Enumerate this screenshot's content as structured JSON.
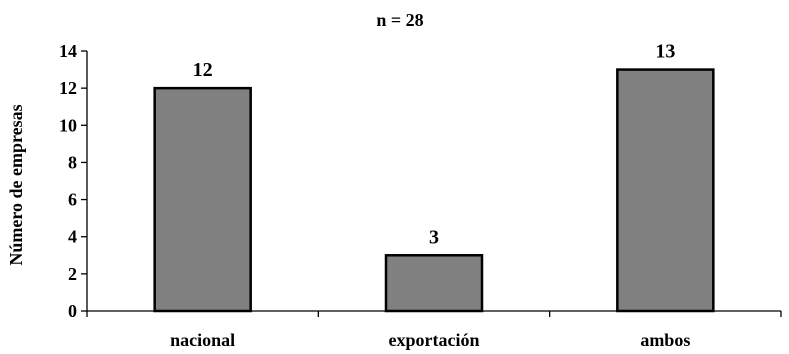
{
  "chart_data": {
    "type": "bar",
    "title": "n = 28",
    "xlabel": "",
    "ylabel": "Número de empresas",
    "categories": [
      "nacional",
      "exportación",
      "ambos"
    ],
    "values": [
      12,
      3,
      13
    ],
    "value_labels": [
      "12",
      "3",
      "13"
    ],
    "ylim": [
      0,
      14
    ],
    "yticks": [
      0,
      2,
      4,
      6,
      8,
      10,
      12,
      14
    ],
    "ytick_labels": [
      "0",
      "2",
      "4",
      "6",
      "8",
      "10",
      "12",
      "14"
    ],
    "grid": false,
    "legend": "none",
    "bar_color": "#808080",
    "bar_edge_color": "#000000"
  }
}
